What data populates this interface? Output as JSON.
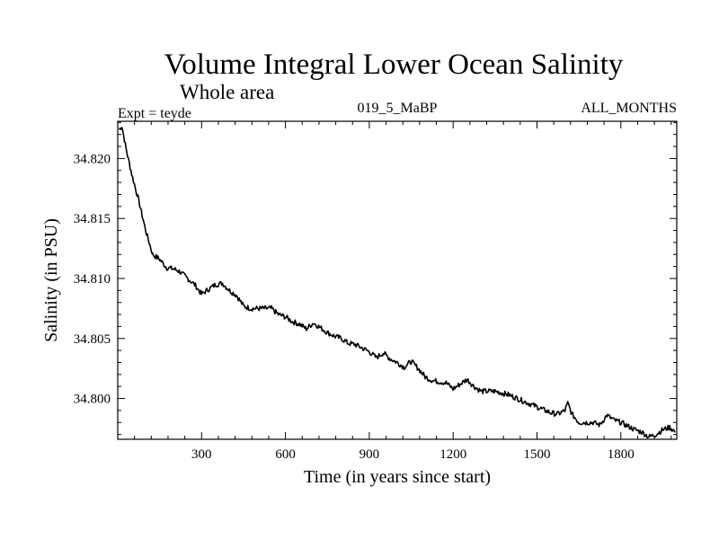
{
  "chart_data": {
    "type": "line",
    "title": "Volume Integral Lower Ocean Salinity",
    "subtitle": "Whole area",
    "expt_label": "Expt = teyde",
    "run_label": "019_5_MaBP",
    "months_label": "ALL_MONTHS",
    "xlabel": "Time (in years since start)",
    "ylabel": "Salinity (in PSU)",
    "xlim": [
      0,
      2000
    ],
    "ylim": [
      34.7966,
      34.8231
    ],
    "xticks": [
      300,
      600,
      900,
      1200,
      1500,
      1800
    ],
    "xtick_labels": [
      "300",
      "600",
      "900",
      "1200",
      "1500",
      "1800"
    ],
    "yticks": [
      34.8,
      34.805,
      34.81,
      34.815,
      34.82
    ],
    "ytick_labels": [
      "34.800",
      "34.805",
      "34.810",
      "34.815",
      "34.820"
    ],
    "series": [
      {
        "name": "Salinity",
        "color": "#000000",
        "x": [
          5,
          15,
          30,
          50,
          75,
          100,
          125,
          150,
          175,
          200,
          220,
          250,
          275,
          300,
          325,
          350,
          375,
          400,
          425,
          450,
          475,
          500,
          550,
          575,
          600,
          625,
          650,
          675,
          700,
          725,
          750,
          775,
          800,
          825,
          850,
          875,
          900,
          925,
          950,
          975,
          1000,
          1025,
          1050,
          1075,
          1100,
          1125,
          1150,
          1175,
          1200,
          1225,
          1250,
          1275,
          1300,
          1325,
          1350,
          1400,
          1450,
          1500,
          1550,
          1575,
          1600,
          1610,
          1625,
          1650,
          1700,
          1725,
          1750,
          1775,
          1800,
          1825,
          1850,
          1875,
          1900,
          1925,
          1950,
          1975,
          1995
        ],
        "y": [
          34.8224,
          34.8227,
          34.8208,
          34.8187,
          34.8165,
          34.814,
          34.812,
          34.8116,
          34.8109,
          34.8108,
          34.8106,
          34.81,
          34.8095,
          34.8087,
          34.8091,
          34.8095,
          34.8096,
          34.809,
          34.8086,
          34.8077,
          34.8075,
          34.8075,
          34.8075,
          34.807,
          34.8068,
          34.8064,
          34.8062,
          34.8058,
          34.8063,
          34.8059,
          34.8055,
          34.8052,
          34.805,
          34.8046,
          34.8045,
          34.8042,
          34.8039,
          34.8034,
          34.8038,
          34.8033,
          34.803,
          34.8026,
          34.8031,
          34.8025,
          34.8018,
          34.8015,
          34.8014,
          34.8013,
          34.8008,
          34.8012,
          34.8016,
          34.801,
          34.8006,
          34.8006,
          34.8006,
          34.8003,
          34.7998,
          34.7993,
          34.7988,
          34.7987,
          34.799,
          34.7996,
          34.7987,
          34.798,
          34.798,
          34.7978,
          34.7986,
          34.7982,
          34.798,
          34.7977,
          34.7974,
          34.7972,
          34.7968,
          34.797,
          34.7974,
          34.7976,
          34.7972
        ]
      }
    ]
  }
}
